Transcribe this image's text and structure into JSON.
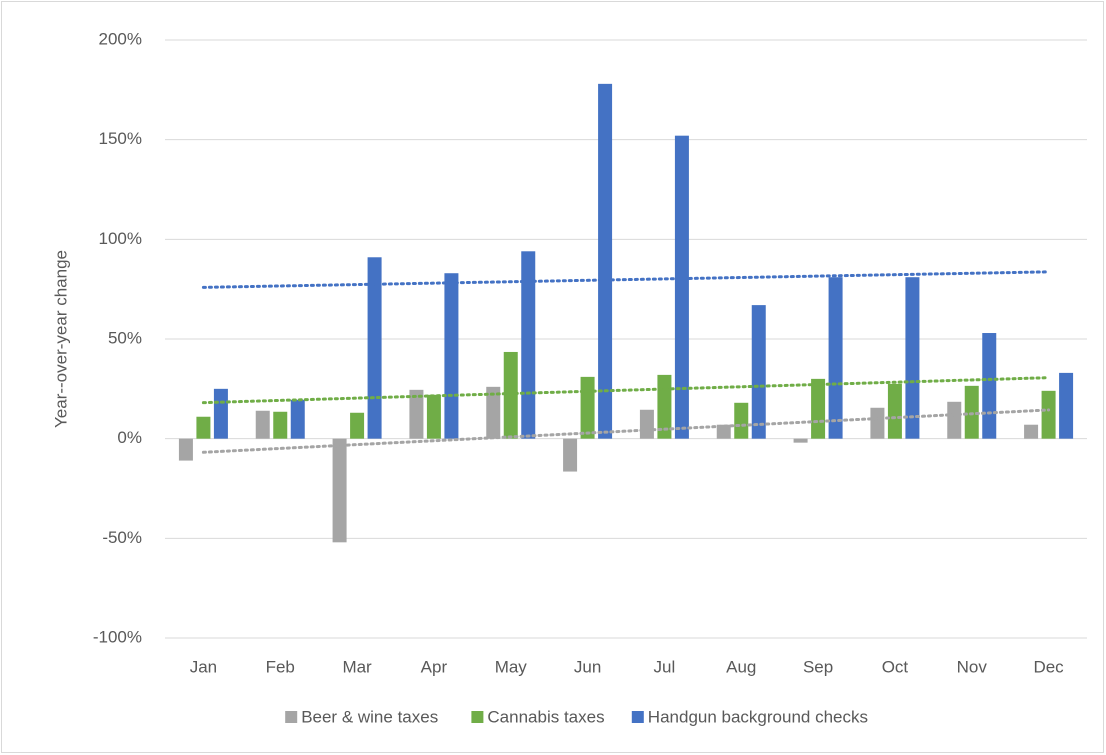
{
  "chart_data": {
    "type": "bar",
    "y_label": "Year--over-year change",
    "categories": [
      "Jan",
      "Feb",
      "Mar",
      "Apr",
      "May",
      "Jun",
      "Jul",
      "Aug",
      "Sep",
      "Oct",
      "Nov",
      "Dec"
    ],
    "series": [
      {
        "name": "Beer & wine taxes",
        "color": "#a5a5a5",
        "values": [
          -11,
          14,
          -52,
          24.5,
          26,
          -16.5,
          14.5,
          7,
          -2,
          15.5,
          18.5,
          7
        ]
      },
      {
        "name": "Cannabis taxes",
        "color": "#70ad47",
        "values": [
          11,
          13.5,
          13,
          22,
          43.5,
          31,
          32,
          18,
          30,
          27.5,
          26.5,
          24
        ]
      },
      {
        "name": "Handgun background checks",
        "color": "#4472c4",
        "values": [
          25,
          19.5,
          91,
          83,
          94,
          178,
          152,
          67,
          81,
          81,
          53,
          33
        ]
      }
    ],
    "ylim": [
      -100,
      200
    ],
    "yticks": [
      {
        "value": -100,
        "label": "-100%"
      },
      {
        "value": -50,
        "label": "-50%"
      },
      {
        "value": 0,
        "label": "0%"
      },
      {
        "value": 50,
        "label": "50%"
      },
      {
        "value": 100,
        "label": "100%"
      },
      {
        "value": 150,
        "label": "150%"
      },
      {
        "value": 200,
        "label": "200%"
      }
    ],
    "grid": true,
    "trendline": "linear",
    "legend": "bottom"
  }
}
